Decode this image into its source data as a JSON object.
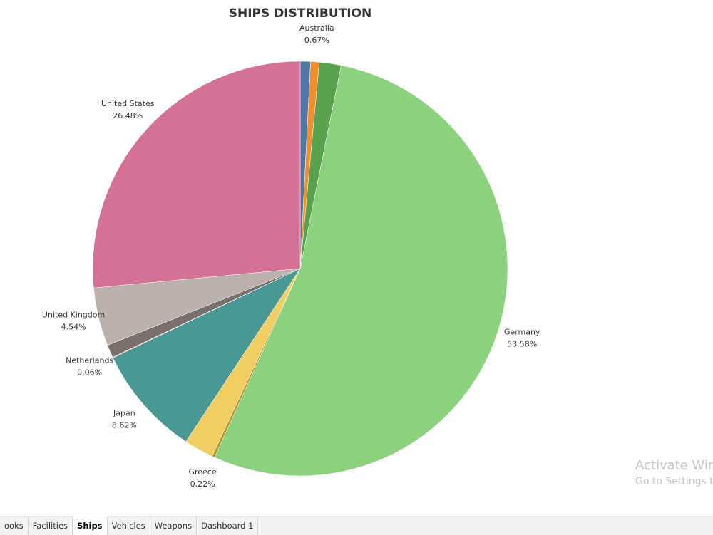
{
  "chart_data": {
    "type": "pie",
    "title": "SHIPS DISTRIBUTION",
    "categories": [
      null,
      "Australia",
      null,
      "Germany",
      "Greece",
      null,
      "Japan",
      "Netherlands",
      null,
      "United Kingdom",
      "United States"
    ],
    "values": [
      0.8,
      0.67,
      1.7,
      53.58,
      0.22,
      2.3,
      8.62,
      0.06,
      1.0,
      4.54,
      26.48
    ],
    "value_labels": [
      null,
      "0.67%",
      null,
      "53.58%",
      "0.22%",
      null,
      "8.62%",
      "0.06%",
      null,
      "4.54%",
      "26.48%"
    ],
    "colors": [
      "#4e79a7",
      "#f28e2b",
      "#59a14f",
      "#8cd17d",
      "#b6992d",
      "#f1ce63",
      "#499894",
      "#ff9d9a",
      "#79706e",
      "#bab0ac",
      "#d37295"
    ]
  },
  "tabs": [
    "ooks",
    "Facilities",
    "Ships",
    "Vehicles",
    "Weapons",
    "Dashboard 1"
  ],
  "watermark": {
    "line1": "Activate Win",
    "line2": "Go to Settings to"
  }
}
